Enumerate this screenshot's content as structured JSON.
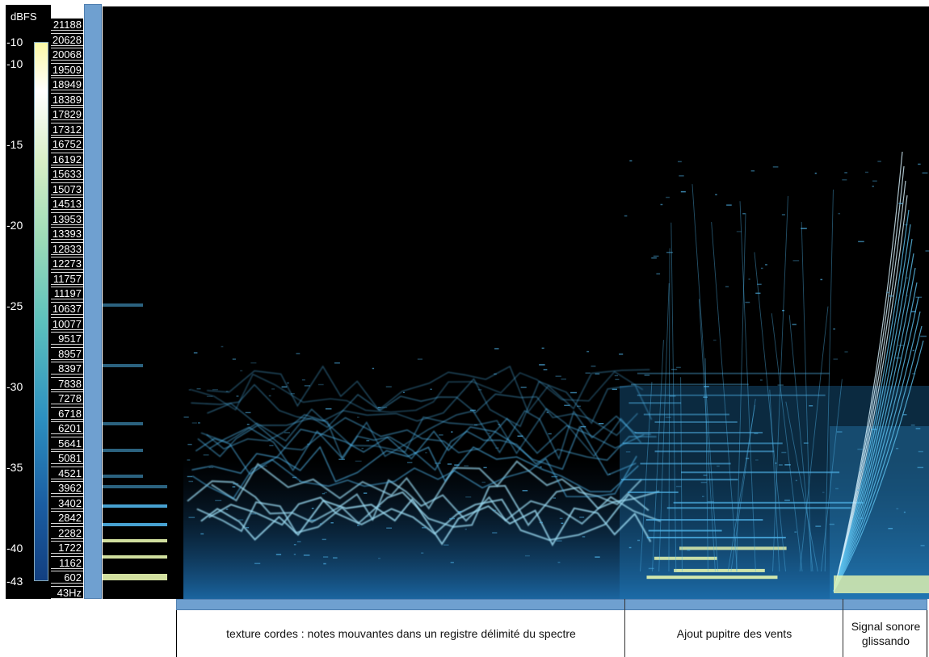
{
  "scale": {
    "unit_label": "dBFS",
    "ticks": [
      "-10",
      "-10",
      "-15",
      "-20",
      "-25",
      "-30",
      "-35",
      "-40",
      "-43"
    ]
  },
  "frequency_axis": {
    "ticks": [
      "21188",
      "20628",
      "20068",
      "19509",
      "18949",
      "18389",
      "17829",
      "17312",
      "16752",
      "16192",
      "15633",
      "15073",
      "14513",
      "13953",
      "13393",
      "12833",
      "12273",
      "11757",
      "11197",
      "10637",
      "10077",
      "9517",
      "8957",
      "8397",
      "7838",
      "7278",
      "6718",
      "6201",
      "5641",
      "5081",
      "4521",
      "3962",
      "3402",
      "2842",
      "2282",
      "1722",
      "1162",
      "602",
      "43Hz"
    ]
  },
  "colors": {
    "background": "#000000",
    "accent_bar": "#6fa0d0",
    "spectrum_low": "#1a5da2",
    "spectrum_mid": "#4fb3e8",
    "spectrum_high": "#e8f7b0"
  },
  "annotations": [
    {
      "label": "texture cordes : notes mouvantes dans un registre délimité du spectre"
    },
    {
      "label": "Ajout pupitre des vents"
    },
    {
      "label": "Signal sonore glissando"
    }
  ]
}
